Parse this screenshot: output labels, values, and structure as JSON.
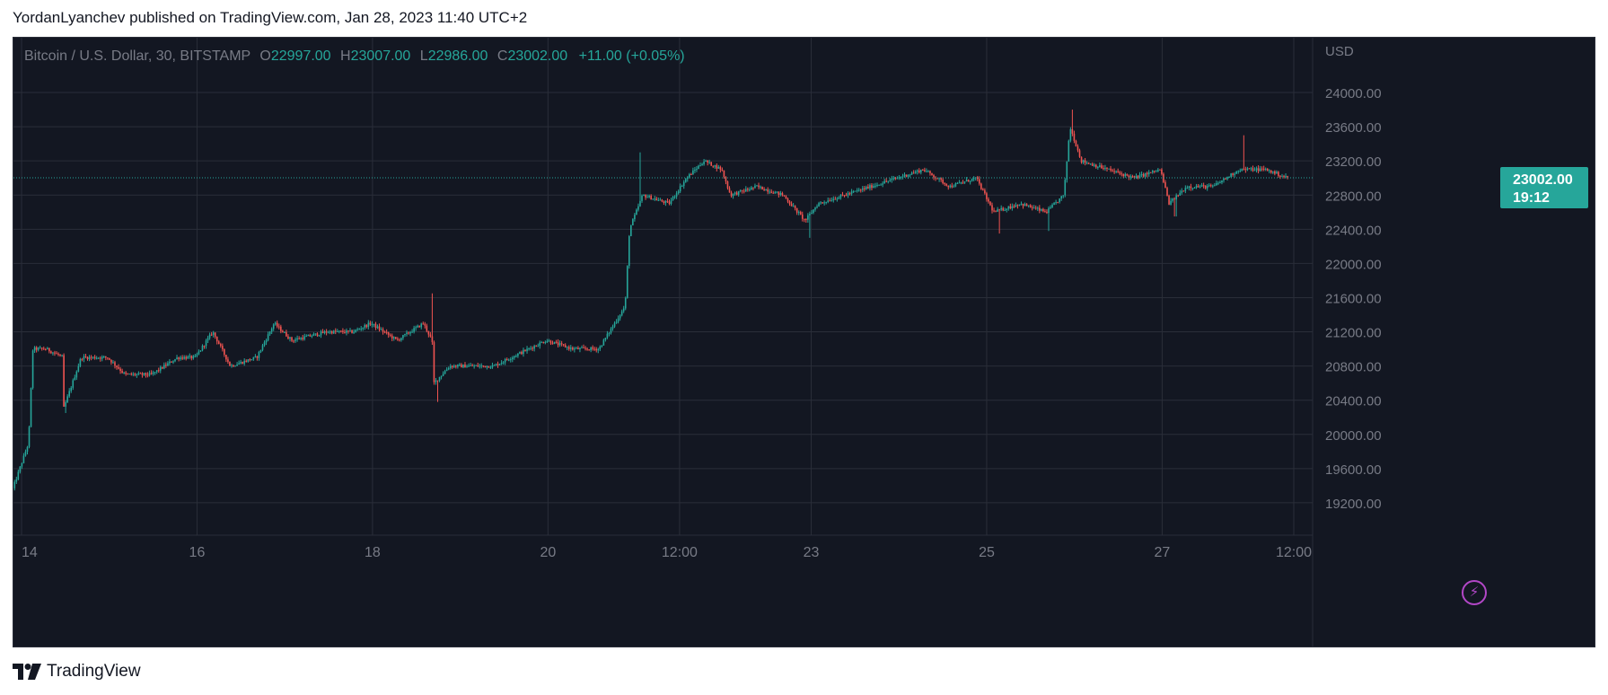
{
  "header": {
    "text": "YordanLyanchev published on TradingView.com, Jan 28, 2023 11:40 UTC+2"
  },
  "legend": {
    "symbol": "Bitcoin / U.S. Dollar, 30, BITSTAMP",
    "open_label": "O",
    "open_value": "22997.00",
    "high_label": "H",
    "high_value": "23007.00",
    "low_label": "L",
    "low_value": "22986.00",
    "close_label": "C",
    "close_value": "23002.00",
    "change": "+11.00 (+0.05%)"
  },
  "price_badge": {
    "price": "23002.00",
    "countdown": "19:12"
  },
  "footer": {
    "brand": "TradingView"
  },
  "colors": {
    "background": "#131722",
    "up": "#26a69a",
    "down": "#ef5350",
    "grid": "#2a2e39",
    "text": "#787b86",
    "lightning": "#b247c7"
  },
  "icons": {
    "logo": "tradingview-logo-icon",
    "lightning": "lightning-icon"
  },
  "chart_data": {
    "type": "candlestick",
    "currency_label": "USD",
    "ylim": [
      18800,
      24200
    ],
    "y_ticks": [
      "24000.00",
      "23600.00",
      "23200.00",
      "22800.00",
      "22400.00",
      "22000.00",
      "21600.00",
      "21200.00",
      "20800.00",
      "20400.00",
      "20000.00",
      "19600.00",
      "19200.00"
    ],
    "x_ticks": [
      {
        "label": "14",
        "t": 0.0
      },
      {
        "label": "16",
        "t": 2.0
      },
      {
        "label": "18",
        "t": 4.0
      },
      {
        "label": "20",
        "t": 6.0
      },
      {
        "label": "12:00",
        "t": 7.5
      },
      {
        "label": "23",
        "t": 9.0
      },
      {
        "label": "25",
        "t": 11.0
      },
      {
        "label": "27",
        "t": 13.0
      },
      {
        "label": "12:00",
        "t": 14.5
      }
    ],
    "t_range": [
      -0.1,
      14.5
    ],
    "last_price": 23002,
    "price_path": [
      [
        -0.1,
        19300
      ],
      [
        0.1,
        19900
      ],
      [
        0.15,
        21000
      ],
      [
        0.3,
        21000
      ],
      [
        0.5,
        20900
      ],
      [
        0.5,
        20300
      ],
      [
        0.7,
        20900
      ],
      [
        1.0,
        20900
      ],
      [
        1.2,
        20700
      ],
      [
        1.5,
        20700
      ],
      [
        1.8,
        20900
      ],
      [
        2.0,
        20900
      ],
      [
        2.2,
        21200
      ],
      [
        2.4,
        20800
      ],
      [
        2.7,
        20900
      ],
      [
        2.9,
        21300
      ],
      [
        3.1,
        21100
      ],
      [
        3.5,
        21200
      ],
      [
        3.8,
        21200
      ],
      [
        4.0,
        21300
      ],
      [
        4.3,
        21100
      ],
      [
        4.6,
        21300
      ],
      [
        4.7,
        21100
      ],
      [
        4.72,
        20600
      ],
      [
        4.9,
        20800
      ],
      [
        5.4,
        20800
      ],
      [
        5.8,
        21000
      ],
      [
        6.0,
        21100
      ],
      [
        6.3,
        21000
      ],
      [
        6.6,
        21000
      ],
      [
        6.9,
        21500
      ],
      [
        6.95,
        22400
      ],
      [
        7.1,
        22800
      ],
      [
        7.4,
        22700
      ],
      [
        7.6,
        23000
      ],
      [
        7.8,
        23200
      ],
      [
        8.0,
        23100
      ],
      [
        8.1,
        22800
      ],
      [
        8.4,
        22900
      ],
      [
        8.7,
        22800
      ],
      [
        8.95,
        22500
      ],
      [
        9.1,
        22700
      ],
      [
        9.4,
        22800
      ],
      [
        9.7,
        22900
      ],
      [
        10.0,
        23000
      ],
      [
        10.3,
        23100
      ],
      [
        10.6,
        22900
      ],
      [
        10.9,
        23000
      ],
      [
        11.1,
        22600
      ],
      [
        11.4,
        22700
      ],
      [
        11.7,
        22600
      ],
      [
        11.9,
        22800
      ],
      [
        11.97,
        23600
      ],
      [
        12.1,
        23200
      ],
      [
        12.4,
        23100
      ],
      [
        12.7,
        23000
      ],
      [
        13.0,
        23100
      ],
      [
        13.1,
        22700
      ],
      [
        13.3,
        22900
      ],
      [
        13.6,
        22900
      ],
      [
        13.9,
        23100
      ],
      [
        14.2,
        23100
      ],
      [
        14.45,
        23002
      ]
    ],
    "spikes": [
      {
        "t": 0.5,
        "low": 20250
      },
      {
        "t": 4.68,
        "high": 21650
      },
      {
        "t": 4.75,
        "low": 20380
      },
      {
        "t": 7.05,
        "high": 23300
      },
      {
        "t": 8.98,
        "low": 22300
      },
      {
        "t": 11.15,
        "low": 22350
      },
      {
        "t": 11.7,
        "low": 22380
      },
      {
        "t": 11.98,
        "high": 23800
      },
      {
        "t": 13.15,
        "low": 22550
      },
      {
        "t": 13.93,
        "high": 23500
      }
    ]
  }
}
